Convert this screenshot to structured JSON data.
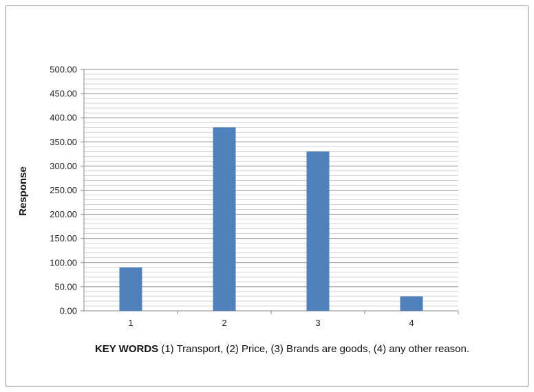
{
  "chart_data": {
    "type": "bar",
    "categories": [
      "1",
      "2",
      "3",
      "4"
    ],
    "values": [
      90,
      380,
      330,
      30
    ],
    "title": "",
    "xlabel_bold": "KEY WORDS",
    "xlabel_rest": " (1) Transport,  (2) Price,  (3) Brands are goods, (4) any other reason.",
    "ylabel": "Response",
    "ylim": [
      0,
      500
    ],
    "yticks": [
      "0.00",
      "50.00",
      "100.00",
      "150.00",
      "200.00",
      "250.00",
      "300.00",
      "350.00",
      "400.00",
      "450.00",
      "500.00"
    ],
    "minor_step": 10,
    "grid": true,
    "legend": "none",
    "bar_color": "#4f81bd"
  }
}
